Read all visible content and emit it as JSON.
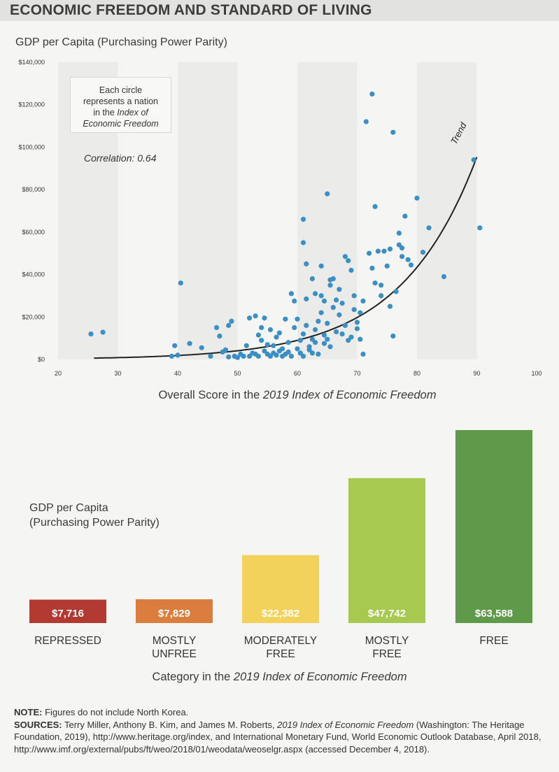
{
  "header": {
    "title": "ECONOMIC FREEDOM AND STANDARD OF LIVING"
  },
  "scatter": {
    "title": "GDP per Capita (Purchasing Power Parity)",
    "legend_lines": [
      "Each circle",
      "represents a nation",
      "in the ",
      "Index of",
      "Economic Freedom"
    ],
    "correlation": "Correlation: 0.64",
    "trend_label": "Trend",
    "xaxis_title_prefix": "Overall Score in the ",
    "xaxis_title_italic": "2019 Index of Economic Freedom",
    "colors": {
      "point": "#3a8fc4",
      "trend": "#222222",
      "band": "#ebebea"
    }
  },
  "chart_data": [
    {
      "type": "scatter",
      "title": "GDP per Capita (Purchasing Power Parity)",
      "xlabel": "Overall Score in the 2019 Index of Economic Freedom",
      "ylabel": "GDP per Capita (Purchasing Power Parity)",
      "xlim": [
        20,
        100
      ],
      "ylim": [
        0,
        140000
      ],
      "xticks": [
        "20",
        "30",
        "40",
        "50",
        "60",
        "70",
        "80",
        "90",
        "100"
      ],
      "yticks": [
        "$0",
        "$20,000",
        "$40,000",
        "$60,000",
        "$80,000",
        "$100,000",
        "$120,000",
        "$140,000"
      ],
      "correlation": 0.64,
      "trend": {
        "type": "exponential",
        "a": 80,
        "b": 0.0787
      },
      "points": [
        [
          25.5,
          12000
        ],
        [
          27.5,
          12800
        ],
        [
          39,
          1500
        ],
        [
          39.5,
          6500
        ],
        [
          40,
          2000
        ],
        [
          40.5,
          36000
        ],
        [
          42,
          7500
        ],
        [
          44,
          5500
        ],
        [
          45.5,
          1500
        ],
        [
          46.5,
          15000
        ],
        [
          47,
          11000
        ],
        [
          47.5,
          3500
        ],
        [
          48,
          4500
        ],
        [
          48.5,
          16000
        ],
        [
          48.5,
          1200
        ],
        [
          49,
          18000
        ],
        [
          49.5,
          1500
        ],
        [
          50,
          900
        ],
        [
          50.5,
          2500
        ],
        [
          51,
          1500
        ],
        [
          51.5,
          6500
        ],
        [
          52,
          19500
        ],
        [
          52,
          1500
        ],
        [
          52.5,
          3000
        ],
        [
          53,
          20500
        ],
        [
          53,
          2500
        ],
        [
          53.5,
          11500
        ],
        [
          53.5,
          1500
        ],
        [
          54,
          15000
        ],
        [
          54,
          9000
        ],
        [
          54.5,
          19500
        ],
        [
          54.5,
          4000
        ],
        [
          55,
          7000
        ],
        [
          55,
          2500
        ],
        [
          55.5,
          14000
        ],
        [
          55.5,
          1500
        ],
        [
          56,
          6500
        ],
        [
          56,
          3000
        ],
        [
          56.5,
          2000
        ],
        [
          56.5,
          10500
        ],
        [
          57,
          12500
        ],
        [
          57,
          4000
        ],
        [
          57.5,
          1500
        ],
        [
          57.5,
          5000
        ],
        [
          58,
          2500
        ],
        [
          58,
          19000
        ],
        [
          58.5,
          3500
        ],
        [
          58.5,
          8000
        ],
        [
          59,
          31000
        ],
        [
          59,
          1500
        ],
        [
          59.5,
          27500
        ],
        [
          59.5,
          15000
        ],
        [
          60,
          5000
        ],
        [
          60,
          19000
        ],
        [
          60.5,
          3000
        ],
        [
          60.5,
          9000
        ],
        [
          61,
          1500
        ],
        [
          61,
          12000
        ],
        [
          61.5,
          16000
        ],
        [
          61.5,
          28500
        ],
        [
          62,
          4500
        ],
        [
          62,
          6000
        ],
        [
          62.5,
          3000
        ],
        [
          62.5,
          9500
        ],
        [
          63,
          8000
        ],
        [
          63,
          14000
        ],
        [
          63.5,
          2500
        ],
        [
          63.5,
          18000
        ],
        [
          64,
          22000
        ],
        [
          64,
          30000
        ],
        [
          64.5,
          7500
        ],
        [
          64.5,
          11500
        ],
        [
          65,
          9500
        ],
        [
          65,
          17000
        ],
        [
          65.5,
          6000
        ],
        [
          65.5,
          35000
        ],
        [
          66,
          24500
        ],
        [
          66,
          38000
        ],
        [
          66.5,
          13000
        ],
        [
          66.5,
          28000
        ],
        [
          67,
          21000
        ],
        [
          67,
          33000
        ],
        [
          67.5,
          26500
        ],
        [
          67.5,
          12000
        ],
        [
          68,
          48500
        ],
        [
          68,
          16000
        ],
        [
          68.5,
          46500
        ],
        [
          68.5,
          9000
        ],
        [
          69,
          10500
        ],
        [
          69,
          42000
        ],
        [
          69.5,
          23500
        ],
        [
          69.5,
          30000
        ],
        [
          70,
          17500
        ],
        [
          70,
          14500
        ],
        [
          70.5,
          9500
        ],
        [
          70.5,
          22000
        ],
        [
          71,
          27500
        ],
        [
          71,
          2500
        ],
        [
          61,
          66000
        ],
        [
          61,
          55000
        ],
        [
          61.5,
          45000
        ],
        [
          62.5,
          38000
        ],
        [
          63,
          31000
        ],
        [
          64,
          44000
        ],
        [
          64.5,
          27500
        ],
        [
          65,
          78000
        ],
        [
          65.5,
          37500
        ],
        [
          71.5,
          112000
        ],
        [
          72,
          50000
        ],
        [
          72.5,
          125000
        ],
        [
          72.5,
          43000
        ],
        [
          73,
          72000
        ],
        [
          73,
          36000
        ],
        [
          73.5,
          51000
        ],
        [
          74,
          35000
        ],
        [
          74,
          30000
        ],
        [
          74.5,
          51000
        ],
        [
          75,
          44000
        ],
        [
          75.5,
          52000
        ],
        [
          75.5,
          25000
        ],
        [
          76,
          107000
        ],
        [
          76,
          11000
        ],
        [
          76.5,
          32000
        ],
        [
          77,
          54000
        ],
        [
          77,
          59500
        ],
        [
          77.5,
          52500
        ],
        [
          77.5,
          48500
        ],
        [
          78,
          67500
        ],
        [
          78.5,
          47000
        ],
        [
          79,
          44500
        ],
        [
          80,
          76000
        ],
        [
          81,
          50500
        ],
        [
          82,
          62000
        ],
        [
          84.5,
          39000
        ],
        [
          89.5,
          94000
        ],
        [
          90.5,
          62000
        ]
      ]
    },
    {
      "type": "bar",
      "title": "GDP per Capita (Purchasing Power Parity)",
      "xlabel": "Category in the 2019 Index of Economic Freedom",
      "ylabel": "GDP per Capita (Purchasing Power Parity)",
      "ylim": [
        0,
        63588
      ],
      "categories": [
        "REPRESSED",
        "MOSTLY UNFREE",
        "MODERATELY FREE",
        "MOSTLY FREE",
        "FREE"
      ],
      "category_lines": [
        [
          "REPRESSED"
        ],
        [
          "MOSTLY",
          "UNFREE"
        ],
        [
          "MODERATELY",
          "FREE"
        ],
        [
          "MOSTLY",
          "FREE"
        ],
        [
          "FREE"
        ]
      ],
      "values": [
        7716,
        7829,
        22382,
        47742,
        63588
      ],
      "value_labels": [
        "$7,716",
        "$7,829",
        "$22,382",
        "$47,742",
        "$63,588"
      ],
      "colors": [
        "#b23a33",
        "#db7d3c",
        "#f2d25a",
        "#a8c950",
        "#5e9a49"
      ]
    }
  ],
  "bars": {
    "ylabel_lines": [
      "GDP per Capita",
      "(Purchasing Power Parity)"
    ],
    "xaxis_title_prefix": "Category in the ",
    "xaxis_title_italic": "2019 Index of Economic Freedom"
  },
  "notes": {
    "note_label": "NOTE:",
    "note_text": " Figures do not include North Korea.",
    "sources_label": "SOURCES:",
    "sources_text_1": " Terry Miller, Anthony B. Kim, and James M. Roberts, ",
    "sources_italic": "2019 Index of Economic Freedom",
    "sources_text_2": " (Washington: The Heritage Foundation, 2019), http://www.heritage.org/index, and International Monetary Fund, World Economic Outlook Database, April 2018, http://www.imf.org/external/pubs/ft/weo/2018/01/weodata/weoselgr.aspx (accessed December 4, 2018)."
  }
}
